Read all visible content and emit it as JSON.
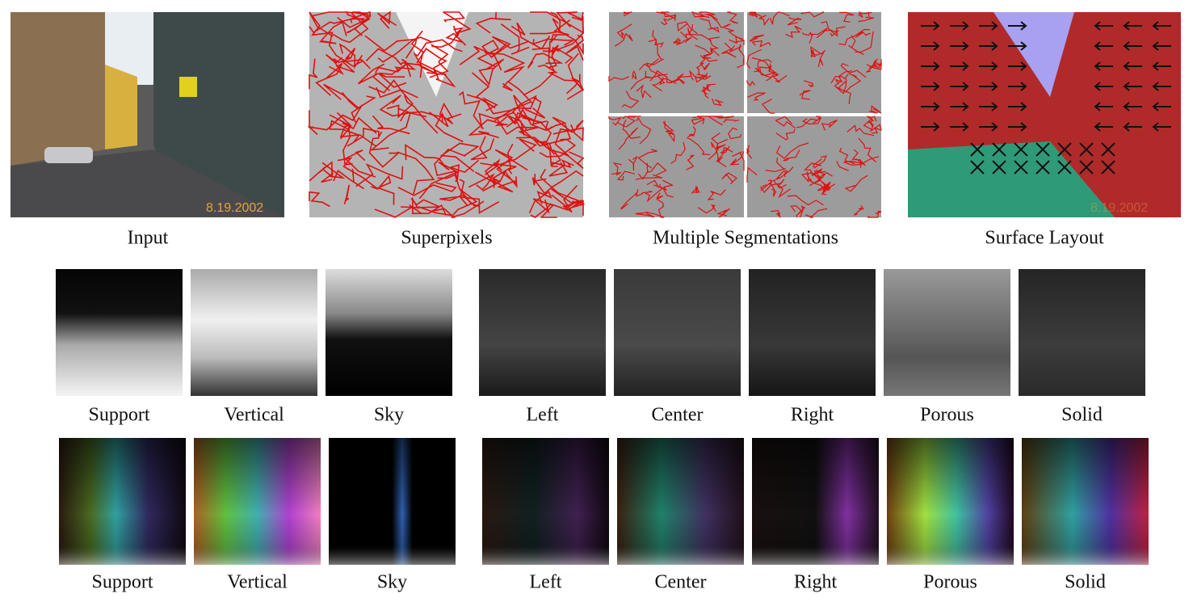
{
  "top_panels": [
    {
      "label": "Input",
      "stamp": "8.19.2002"
    },
    {
      "label": "Superpixels"
    },
    {
      "label": "Multiple Segmentations"
    },
    {
      "label": "Surface Layout",
      "stamp": "8.19.2002"
    }
  ],
  "confidence_maps": {
    "labels": [
      "Support",
      "Vertical",
      "Sky",
      "Left",
      "Center",
      "Right",
      "Porous",
      "Solid"
    ]
  },
  "feature_maps": {
    "labels": [
      "Support",
      "Vertical",
      "Sky",
      "Left",
      "Center",
      "Right",
      "Porous",
      "Solid"
    ]
  }
}
